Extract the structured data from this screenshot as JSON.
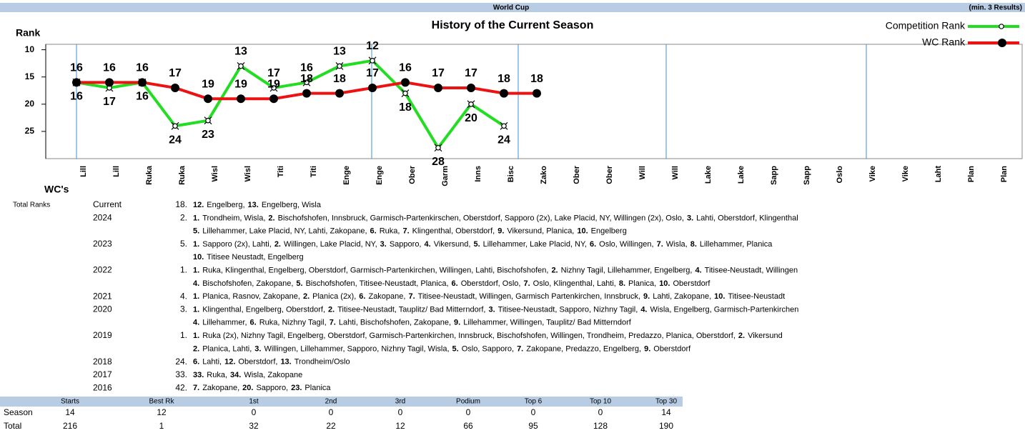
{
  "header": {
    "title": "World Cup",
    "note": "(min. 3 Results)"
  },
  "chart_data": {
    "type": "line",
    "title": "History of the Current Season",
    "y_label": "Rank",
    "x_label": "WC's",
    "categories": [
      "Lill",
      "Lill",
      "Ruka",
      "Ruka",
      "Wisl",
      "Wisl",
      "Titi",
      "Titi",
      "Enge",
      "Enge",
      "Ober",
      "Garm",
      "Inns",
      "Bisc",
      "Zako",
      "Ober",
      "Ober",
      "Will",
      "Will",
      "Lake",
      "Lake",
      "Sapp",
      "Sapp",
      "Oslo",
      "Vike",
      "Vike",
      "Laht",
      "Plan",
      "Plan"
    ],
    "series": [
      {
        "name": "Competition Rank",
        "color": "#22dd22",
        "values": [
          16,
          17,
          16,
          24,
          23,
          13,
          17,
          16,
          13,
          12,
          18,
          28,
          20,
          24,
          null,
          null,
          null,
          null,
          null,
          null,
          null,
          null,
          null,
          null,
          null,
          null,
          null,
          null,
          null
        ]
      },
      {
        "name": "WC Rank",
        "color": "#ee1111",
        "values": [
          16,
          16,
          16,
          17,
          19,
          19,
          19,
          18,
          18,
          17,
          16,
          17,
          17,
          18,
          18,
          null,
          null,
          null,
          null,
          null,
          null,
          null,
          null,
          null,
          null,
          null,
          null,
          null,
          null
        ]
      }
    ],
    "ylim": [
      9,
      30
    ],
    "yticks": [
      10,
      15,
      20,
      25
    ],
    "y_reversed": true,
    "legend": "top-right"
  },
  "total_ranks": {
    "title": "Total Ranks",
    "rows": [
      {
        "season": "Current",
        "rank": "18.",
        "lines": [
          [
            [
              "12.",
              "Engelberg,"
            ],
            [
              "13.",
              "Engelberg, Wisla"
            ]
          ]
        ]
      },
      {
        "season": "2024",
        "rank": "2.",
        "lines": [
          [
            [
              "1.",
              "Trondheim, Wisla,"
            ],
            [
              "2.",
              "Bischofshofen, Innsbruck, Garmisch-Partenkirschen, Oberstdorf, Sapporo (2x), Lake Placid, NY, Willingen (2x), Oslo,"
            ],
            [
              "3.",
              "Lahti, Oberstdorf, Klingenthal"
            ]
          ],
          [
            [
              "5.",
              "Lillehammer, Lake Placid, NY, Lahti, Zakopane,"
            ],
            [
              "6.",
              "Ruka,"
            ],
            [
              "7.",
              "Klingenthal, Oberstdorf,"
            ],
            [
              "9.",
              "Vikersund, Planica,"
            ],
            [
              "10.",
              "Engelberg"
            ]
          ]
        ]
      },
      {
        "season": "2023",
        "rank": "5.",
        "lines": [
          [
            [
              "1.",
              "Sapporo (2x), Lahti,"
            ],
            [
              "2.",
              "Willingen, Lake Placid, NY,"
            ],
            [
              "3.",
              "Sapporo,"
            ],
            [
              "4.",
              "Vikersund,"
            ],
            [
              "5.",
              "Lillehammer, Lake Placid, NY,"
            ],
            [
              "6.",
              "Oslo, Willingen,"
            ],
            [
              "7.",
              "Wisla,"
            ],
            [
              "8.",
              "Lillehammer, Planica"
            ]
          ],
          [
            [
              "10.",
              "Titisee Neustadt, Engelberg"
            ]
          ]
        ]
      },
      {
        "season": "2022",
        "rank": "1.",
        "lines": [
          [
            [
              "1.",
              "Ruka, Klingenthal, Engelberg, Oberstdorf, Garmisch-Partenkirchen, Willingen, Lahti, Bischofshofen,"
            ],
            [
              "2.",
              "Nizhny Tagil, Lillehammer, Engelberg,"
            ],
            [
              "4.",
              "Titisee-Neustadt, Willingen"
            ]
          ],
          [
            [
              "4.",
              "Bischofshofen, Zakopane,"
            ],
            [
              "5.",
              "Bischofshofen, Titisee-Neustadt, Planica,"
            ],
            [
              "6.",
              "Oberstdorf, Oslo,"
            ],
            [
              "7.",
              "Oslo, Klingenthal, Lahti,"
            ],
            [
              "8.",
              "Planica,"
            ],
            [
              "10.",
              "Oberstdorf"
            ]
          ]
        ]
      },
      {
        "season": "2021",
        "rank": "4.",
        "lines": [
          [
            [
              "1.",
              "Planica, Rasnov, Zakopane,"
            ],
            [
              "2.",
              "Planica (2x),"
            ],
            [
              "6.",
              "Zakopane,"
            ],
            [
              "7.",
              "Titisee-Neustadt, Willingen, Garmisch Partenkirchen, Innsbruck,"
            ],
            [
              "9.",
              "Lahti, Zakopane,"
            ],
            [
              "10.",
              "Titisee-Neustadt"
            ]
          ]
        ]
      },
      {
        "season": "2020",
        "rank": "3.",
        "lines": [
          [
            [
              "1.",
              "Klingenthal, Engelberg, Oberstdorf,"
            ],
            [
              "2.",
              "Titisee-Neustadt, Tauplitz/ Bad Mitterndorf,"
            ],
            [
              "3.",
              "Titisee-Neustadt, Sapporo, Nizhny Tagil,"
            ],
            [
              "4.",
              "Wisla, Engelberg, Garmisch-Partenkirchen"
            ]
          ],
          [
            [
              "4.",
              "Lillehammer,"
            ],
            [
              "6.",
              "Ruka, Nizhny Tagil,"
            ],
            [
              "7.",
              "Lahti, Bischofshofen, Zakopane,"
            ],
            [
              "9.",
              "Lillehammer, Willingen, Tauplitz/ Bad Mitterndorf"
            ]
          ]
        ]
      },
      {
        "season": "2019",
        "rank": "1.",
        "lines": [
          [
            [
              "1.",
              "Ruka (2x), Nizhny Tagil, Engelberg, Oberstdorf, Garmisch-Partenkirchen, Innsbruck, Bischofshofen, Willingen, Trondheim, Predazzo, Planica, Oberstdorf,"
            ],
            [
              "2.",
              "Vikersund"
            ]
          ],
          [
            [
              "2.",
              "Planica, Lahti,"
            ],
            [
              "3.",
              "Willingen, Lillehammer, Sapporo, Nizhny Tagil, Wisla,"
            ],
            [
              "5.",
              "Oslo, Sapporo,"
            ],
            [
              "7.",
              "Zakopane, Predazzo, Engelberg,"
            ],
            [
              "9.",
              "Oberstdorf"
            ]
          ]
        ]
      },
      {
        "season": "2018",
        "rank": "24.",
        "lines": [
          [
            [
              "6.",
              "Lahti,"
            ],
            [
              "12.",
              "Oberstdorf,"
            ],
            [
              "13.",
              "Trondheim/Oslo"
            ]
          ]
        ]
      },
      {
        "season": "2017",
        "rank": "33.",
        "lines": [
          [
            [
              "33.",
              "Ruka,"
            ],
            [
              "34.",
              "Wisla, Zakopane"
            ]
          ]
        ]
      },
      {
        "season": "2016",
        "rank": "42.",
        "lines": [
          [
            [
              "7.",
              "Zakopane,"
            ],
            [
              "20.",
              "Sapporo,"
            ],
            [
              "23.",
              "Planica"
            ]
          ]
        ]
      }
    ]
  },
  "stats": {
    "columns": [
      "Starts",
      "Best Rk",
      "1st",
      "2nd",
      "3rd",
      "Podium",
      "Top 6",
      "Top 10",
      "Top 30"
    ],
    "rows": [
      {
        "label": "Season",
        "values": [
          14,
          12,
          0,
          0,
          0,
          0,
          0,
          0,
          14
        ]
      },
      {
        "label": "Total",
        "values": [
          216,
          1,
          32,
          22,
          12,
          66,
          95,
          128,
          190
        ]
      }
    ]
  }
}
